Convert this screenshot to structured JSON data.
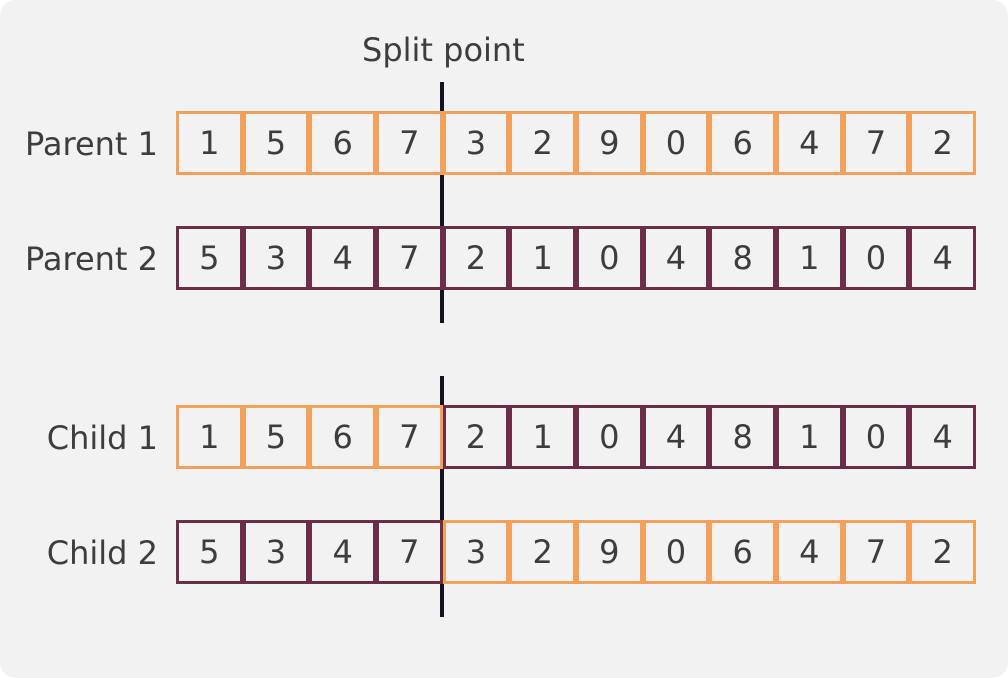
{
  "split_label": "Split point",
  "split_after": 4,
  "colors": {
    "parent1": "#f5a05a",
    "parent2": "#6b2d48",
    "divider": "#141420",
    "background": "#f2f2f2",
    "text": "#3d3d3d"
  },
  "parents": [
    {
      "label": "Parent 1",
      "genes": [
        "1",
        "5",
        "6",
        "7",
        "3",
        "2",
        "9",
        "0",
        "6",
        "4",
        "7",
        "2"
      ],
      "sources": [
        1,
        1,
        1,
        1,
        1,
        1,
        1,
        1,
        1,
        1,
        1,
        1
      ]
    },
    {
      "label": "Parent 2",
      "genes": [
        "5",
        "3",
        "4",
        "7",
        "2",
        "1",
        "0",
        "4",
        "8",
        "1",
        "0",
        "4"
      ],
      "sources": [
        2,
        2,
        2,
        2,
        2,
        2,
        2,
        2,
        2,
        2,
        2,
        2
      ]
    }
  ],
  "children": [
    {
      "label": "Child 1",
      "genes": [
        "1",
        "5",
        "6",
        "7",
        "2",
        "1",
        "0",
        "4",
        "8",
        "1",
        "0",
        "4"
      ],
      "sources": [
        1,
        1,
        1,
        1,
        2,
        2,
        2,
        2,
        2,
        2,
        2,
        2
      ]
    },
    {
      "label": "Child 2",
      "genes": [
        "5",
        "3",
        "4",
        "7",
        "3",
        "2",
        "9",
        "0",
        "6",
        "4",
        "7",
        "2"
      ],
      "sources": [
        2,
        2,
        2,
        2,
        1,
        1,
        1,
        1,
        1,
        1,
        1,
        1
      ]
    }
  ]
}
